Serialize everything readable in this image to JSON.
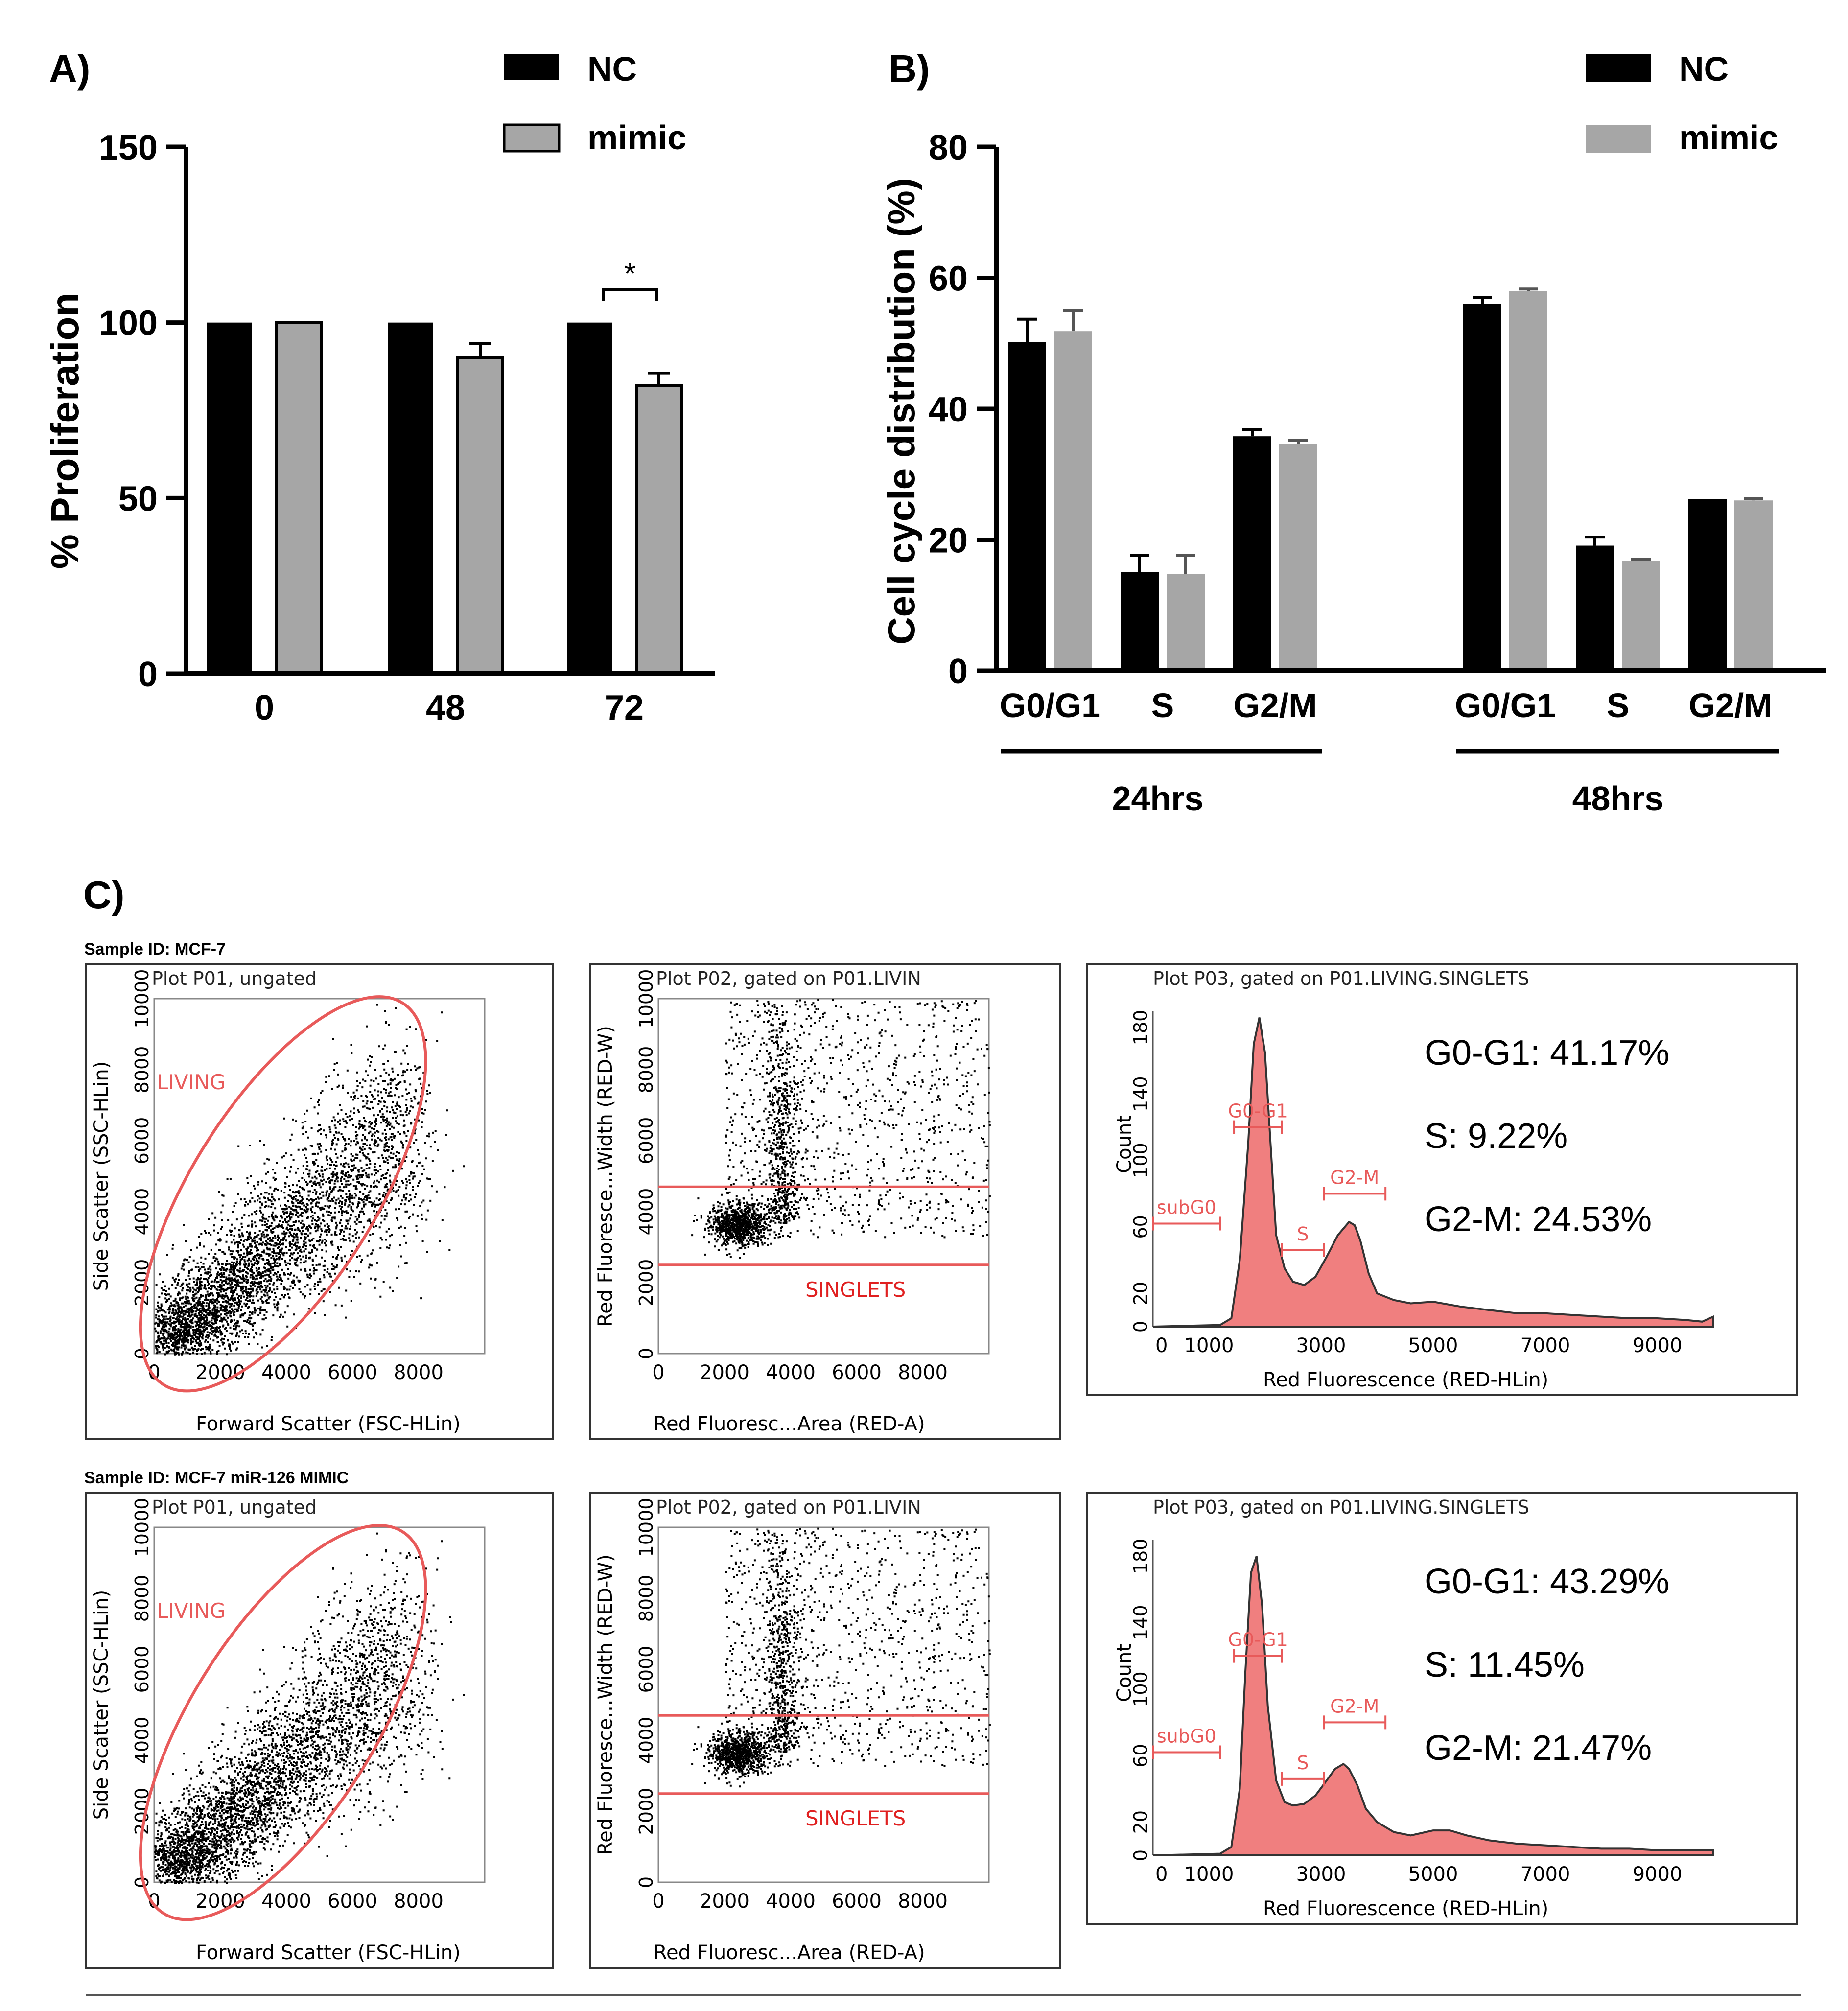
{
  "colors": {
    "nc": "#000000",
    "mimic": "#a6a6a6",
    "gate": "#e85a5a",
    "hist_fill": "#f07f7f",
    "gate_label": "#e02020"
  },
  "panel_a": {
    "label": "A)",
    "legend": [
      "NC",
      "mimic"
    ],
    "significance": "*"
  },
  "panel_b": {
    "label": "B)",
    "legend": [
      "NC",
      "mimic"
    ],
    "groups": [
      "24hrs",
      "48hrs"
    ]
  },
  "panel_c": {
    "label": "C)",
    "samples": [
      {
        "sample_id": "Sample ID: MCF-7",
        "p1": {
          "title": "Plot P01, ungated",
          "xlabel": "Forward Scatter (FSC-HLin)",
          "ylabel": "Side Scatter (SSC-HLin)",
          "gate": "LIVING",
          "xticks": [
            "0",
            "2000",
            "4000",
            "6000",
            "8000"
          ],
          "yticks": [
            "0",
            "2000",
            "4000",
            "6000",
            "8000",
            "10000"
          ]
        },
        "p2": {
          "title": "Plot P02, gated on P01.LIVIN",
          "xlabel": "Red Fluoresc...Area (RED-A)",
          "ylabel": "Red Fluoresce...Width (RED-W)",
          "gate": "SINGLETS",
          "xticks": [
            "0",
            "2000",
            "4000",
            "6000",
            "8000"
          ],
          "yticks": [
            "0",
            "2000",
            "4000",
            "6000",
            "8000",
            "10000"
          ]
        },
        "p3": {
          "title": "Plot P03, gated on P01.LIVING.SINGLETS",
          "xlabel": "Red Fluorescence (RED-HLin)",
          "ylabel": "Count",
          "gates": [
            "subG0",
            "G0-G1",
            "S",
            "G2-M"
          ],
          "xticks": [
            "0",
            "1000",
            "3000",
            "5000",
            "7000",
            "9000"
          ],
          "yticks": [
            "0",
            "20",
            "60",
            "100",
            "140",
            "180"
          ],
          "stats": [
            "G0-G1: 41.17%",
            "S: 9.22%",
            "G2-M: 24.53%"
          ]
        }
      },
      {
        "sample_id": "Sample ID: MCF-7 miR-126 MIMIC",
        "p1": {
          "title": "Plot P01, ungated",
          "xlabel": "Forward Scatter (FSC-HLin)",
          "ylabel": "Side Scatter (SSC-HLin)",
          "gate": "LIVING",
          "xticks": [
            "0",
            "2000",
            "4000",
            "6000",
            "8000"
          ],
          "yticks": [
            "0",
            "2000",
            "4000",
            "6000",
            "8000",
            "10000"
          ]
        },
        "p2": {
          "title": "Plot P02, gated on P01.LIVIN",
          "xlabel": "Red Fluoresc...Area (RED-A)",
          "ylabel": "Red Fluoresce...Width (RED-W)",
          "gate": "SINGLETS",
          "xticks": [
            "0",
            "2000",
            "4000",
            "6000",
            "8000"
          ],
          "yticks": [
            "0",
            "2000",
            "4000",
            "6000",
            "8000",
            "10000"
          ]
        },
        "p3": {
          "title": "Plot P03, gated on P01.LIVING.SINGLETS",
          "xlabel": "Red Fluorescence (RED-HLin)",
          "ylabel": "Count",
          "gates": [
            "subG0",
            "G0-G1",
            "S",
            "G2-M"
          ],
          "xticks": [
            "0",
            "1000",
            "3000",
            "5000",
            "7000",
            "9000"
          ],
          "yticks": [
            "0",
            "20",
            "60",
            "100",
            "140",
            "180"
          ],
          "stats": [
            "G0-G1: 43.29%",
            "S: 11.45%",
            "G2-M: 21.47%"
          ]
        }
      }
    ]
  },
  "chart_data": [
    {
      "type": "bar",
      "title": "",
      "xlabel": "",
      "ylabel": "% Proliferation",
      "ylim": [
        0,
        150
      ],
      "yticks": [
        0,
        50,
        100,
        150
      ],
      "categories": [
        "0",
        "48",
        "72"
      ],
      "series": [
        {
          "name": "NC",
          "values": [
            100,
            100,
            100
          ],
          "errors": [
            0,
            0,
            0
          ]
        },
        {
          "name": "mimic",
          "values": [
            100,
            90,
            82
          ],
          "errors": [
            0,
            4,
            3.5
          ]
        }
      ]
    },
    {
      "type": "bar",
      "title": "",
      "xlabel": "",
      "ylabel": "Cell cycle distribution (%)",
      "ylim": [
        0,
        80
      ],
      "yticks": [
        0,
        20,
        40,
        60,
        80
      ],
      "categories": [
        "G0/G1",
        "S",
        "G2/M",
        "G0/G1",
        "S",
        "G2/M"
      ],
      "series": [
        {
          "name": "NC",
          "values": [
            50.2,
            15.1,
            35.8,
            56,
            19.1,
            26.2
          ],
          "errors": [
            3.5,
            2.5,
            1,
            1,
            1.3,
            0
          ]
        },
        {
          "name": "mimic",
          "values": [
            51.8,
            14.8,
            34.6,
            58,
            16.8,
            26
          ],
          "errors": [
            3.2,
            2.8,
            0.6,
            0.3,
            0.2,
            0.3
          ]
        }
      ]
    },
    {
      "type": "area",
      "title": "Plot P03, gated on P01.LIVING.SINGLETS",
      "xlabel": "Red Fluorescence (RED-HLin)",
      "ylabel": "Count",
      "xlim": [
        0,
        10000
      ],
      "ylim": [
        0,
        190
      ],
      "series": [
        {
          "name": "MCF-7",
          "x": [
            0,
            1200,
            1400,
            1550,
            1700,
            1800,
            1900,
            2000,
            2100,
            2200,
            2350,
            2500,
            2700,
            2900,
            3100,
            3300,
            3500,
            3600,
            3700,
            3850,
            4000,
            4300,
            4600,
            5000,
            5500,
            6000,
            6500,
            7000,
            7500,
            8000,
            8500,
            9000,
            9500,
            9800,
            10000
          ],
          "y": [
            0,
            1,
            5,
            40,
            110,
            170,
            186,
            165,
            110,
            55,
            35,
            27,
            25,
            30,
            42,
            55,
            63,
            61,
            52,
            32,
            20,
            16,
            14,
            15,
            12,
            10,
            8,
            8,
            7,
            6,
            5,
            5,
            4,
            3,
            6
          ]
        },
        {
          "name": "MCF-7 miR-126 MIMIC",
          "x": [
            0,
            1200,
            1400,
            1550,
            1650,
            1750,
            1850,
            1950,
            2050,
            2200,
            2350,
            2500,
            2700,
            2900,
            3100,
            3250,
            3400,
            3500,
            3650,
            3800,
            4000,
            4300,
            4600,
            5000,
            5300,
            5600,
            6000,
            6500,
            7000,
            7500,
            8000,
            8500,
            9000,
            9500,
            10000
          ],
          "y": [
            0,
            1,
            5,
            40,
            110,
            170,
            180,
            150,
            90,
            45,
            32,
            30,
            31,
            36,
            45,
            52,
            55,
            52,
            42,
            28,
            20,
            14,
            12,
            15,
            15,
            12,
            9,
            7,
            6,
            5,
            4,
            4,
            3,
            3,
            3
          ]
        }
      ]
    }
  ]
}
